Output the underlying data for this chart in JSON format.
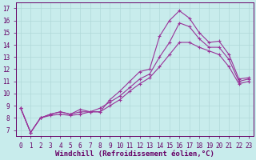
{
  "xlabel": "Windchill (Refroidissement éolien,°C)",
  "background_color": "#c8ecec",
  "grid_color": "#b0d8d8",
  "line_color": "#993399",
  "xlim": [
    -0.5,
    23.5
  ],
  "ylim": [
    6.5,
    17.5
  ],
  "xticks": [
    0,
    1,
    2,
    3,
    4,
    5,
    6,
    7,
    8,
    9,
    10,
    11,
    12,
    13,
    14,
    15,
    16,
    17,
    18,
    19,
    20,
    21,
    22,
    23
  ],
  "yticks": [
    7,
    8,
    9,
    10,
    11,
    12,
    13,
    14,
    15,
    16,
    17
  ],
  "line1_x": [
    0,
    1,
    2,
    3,
    4,
    5,
    6,
    7,
    8,
    9,
    10,
    11,
    12,
    13,
    14,
    15,
    16,
    17,
    18,
    19,
    20,
    21,
    22,
    23
  ],
  "line1_y": [
    8.8,
    6.8,
    8.0,
    8.3,
    8.5,
    8.3,
    8.7,
    8.5,
    8.5,
    9.5,
    10.2,
    11.0,
    11.8,
    12.0,
    14.7,
    16.0,
    16.8,
    16.2,
    15.0,
    14.2,
    14.3,
    13.2,
    11.2,
    11.3
  ],
  "line2_x": [
    0,
    1,
    2,
    3,
    4,
    5,
    6,
    7,
    8,
    9,
    10,
    11,
    12,
    13,
    14,
    15,
    16,
    17,
    18,
    19,
    20,
    21,
    22,
    23
  ],
  "line2_y": [
    8.8,
    6.8,
    8.0,
    8.3,
    8.5,
    8.3,
    8.5,
    8.5,
    8.8,
    9.3,
    9.8,
    10.5,
    11.2,
    11.6,
    13.0,
    14.2,
    15.8,
    15.5,
    14.5,
    13.8,
    13.8,
    12.8,
    11.0,
    11.2
  ],
  "line3_x": [
    0,
    1,
    2,
    3,
    4,
    5,
    6,
    7,
    8,
    9,
    10,
    11,
    12,
    13,
    14,
    15,
    16,
    17,
    18,
    19,
    20,
    21,
    22,
    23
  ],
  "line3_y": [
    8.8,
    6.8,
    8.0,
    8.2,
    8.3,
    8.2,
    8.3,
    8.5,
    8.5,
    9.0,
    9.5,
    10.2,
    10.8,
    11.3,
    12.2,
    13.2,
    14.2,
    14.2,
    13.8,
    13.5,
    13.2,
    12.2,
    10.8,
    11.0
  ],
  "tick_fontsize": 5.5,
  "xlabel_fontsize": 6.5
}
